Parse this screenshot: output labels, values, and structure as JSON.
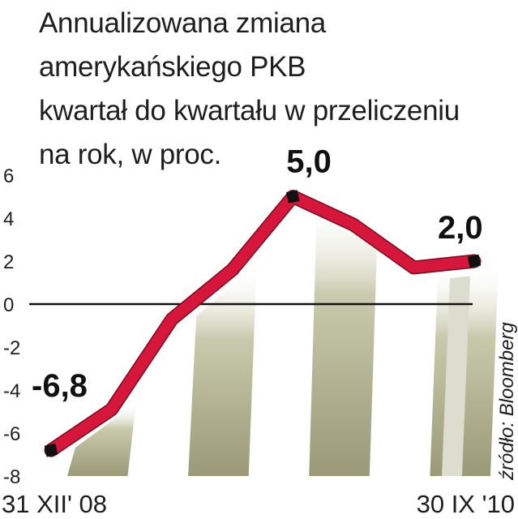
{
  "chart_data": {
    "type": "line",
    "title_lines": [
      "Annualizowana zmiana",
      "amerykańskiego PKB",
      "kwartał do kwartału w przeliczeniu",
      "na rok, w proc."
    ],
    "x_tick_labels": [
      "31 XII' 08",
      "30 IX '10"
    ],
    "x": [
      "31 XII' 08",
      "",
      "",
      "",
      "",
      "",
      "",
      "30 IX '10"
    ],
    "values": [
      -6.8,
      -4.9,
      -0.7,
      1.6,
      5.0,
      3.7,
      1.7,
      2.0
    ],
    "ylim": [
      -8,
      6
    ],
    "y_ticks": [
      "6",
      "4",
      "2",
      "0",
      "-2",
      "-4",
      "-6",
      "-8"
    ],
    "y_tick_values": [
      6,
      4,
      2,
      0,
      -2,
      -4,
      -6,
      -8
    ],
    "data_labels": [
      {
        "index": 0,
        "text": "-6,8"
      },
      {
        "index": 4,
        "text": "5,0"
      },
      {
        "index": 7,
        "text": "2,0"
      }
    ],
    "source": "źródło: Bloomberg",
    "colors": {
      "line": "#d6163a",
      "marker": "#111111",
      "stripe": "#a9a98a",
      "zero_line": "#111111"
    }
  }
}
